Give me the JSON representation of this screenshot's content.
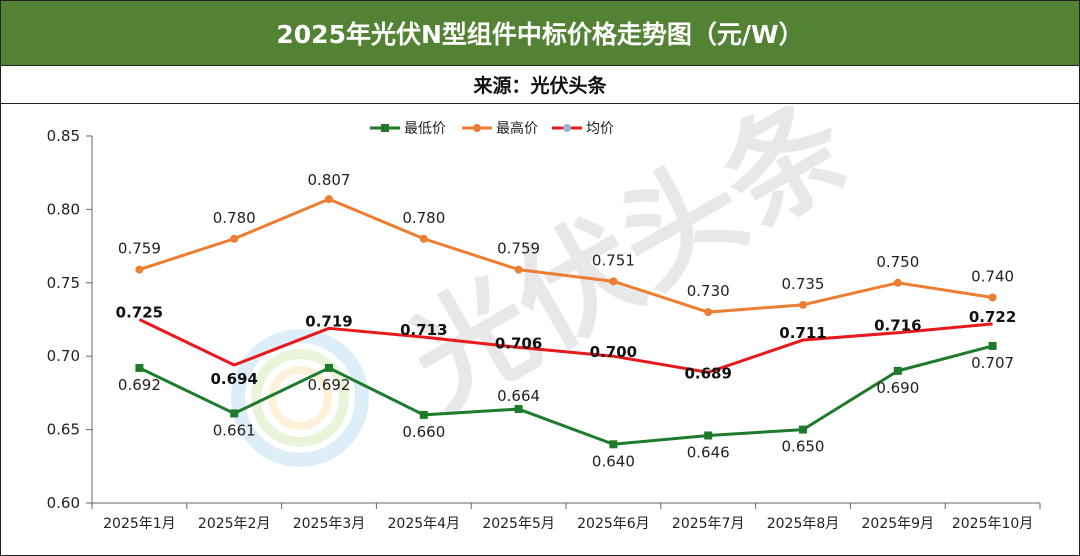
{
  "title": "2025年光伏N型组件中标价格走势图（元/W）",
  "source": "来源：光伏头条",
  "watermark": "光伏头条",
  "chart_data": {
    "type": "line",
    "categories": [
      "2025年1月",
      "2025年2月",
      "2025年3月",
      "2025年4月",
      "2025年5月",
      "2025年6月",
      "2025年7月",
      "2025年8月",
      "2025年9月",
      "2025年10月"
    ],
    "ylim": [
      0.6,
      0.85
    ],
    "yticks": [
      "0.60",
      "0.65",
      "0.70",
      "0.75",
      "0.80",
      "0.85"
    ],
    "series": [
      {
        "name": "最低价",
        "color": "#1e7b2c",
        "marker": "square",
        "values": [
          0.692,
          0.661,
          0.692,
          0.66,
          0.664,
          0.64,
          0.646,
          0.65,
          0.69,
          0.707
        ],
        "labels": [
          "0.692",
          "0.661",
          "0.692",
          "0.660",
          "0.664",
          "0.640",
          "0.646",
          "0.650",
          "0.690",
          "0.707"
        ]
      },
      {
        "name": "最高价",
        "color": "#ed7d31",
        "marker": "circle",
        "values": [
          0.759,
          0.78,
          0.807,
          0.78,
          0.759,
          0.751,
          0.73,
          0.735,
          0.75,
          0.74
        ],
        "labels": [
          "0.759",
          "0.780",
          "0.807",
          "0.780",
          "0.759",
          "0.751",
          "0.730",
          "0.735",
          "0.750",
          "0.740"
        ]
      },
      {
        "name": "均价",
        "color": "#e8191c",
        "marker": "none",
        "values": [
          0.725,
          0.694,
          0.719,
          0.713,
          0.706,
          0.7,
          0.689,
          0.711,
          0.716,
          0.722
        ],
        "labels": [
          "0.725",
          "0.694",
          "0.719",
          "0.713",
          "0.706",
          "0.700",
          "0.689",
          "0.711",
          "0.716",
          "0.722"
        ]
      }
    ],
    "title": "2025年光伏N型组件中标价格走势图（元/W）",
    "xlabel": "",
    "ylabel": "",
    "legend": "top-center",
    "grid": false
  }
}
